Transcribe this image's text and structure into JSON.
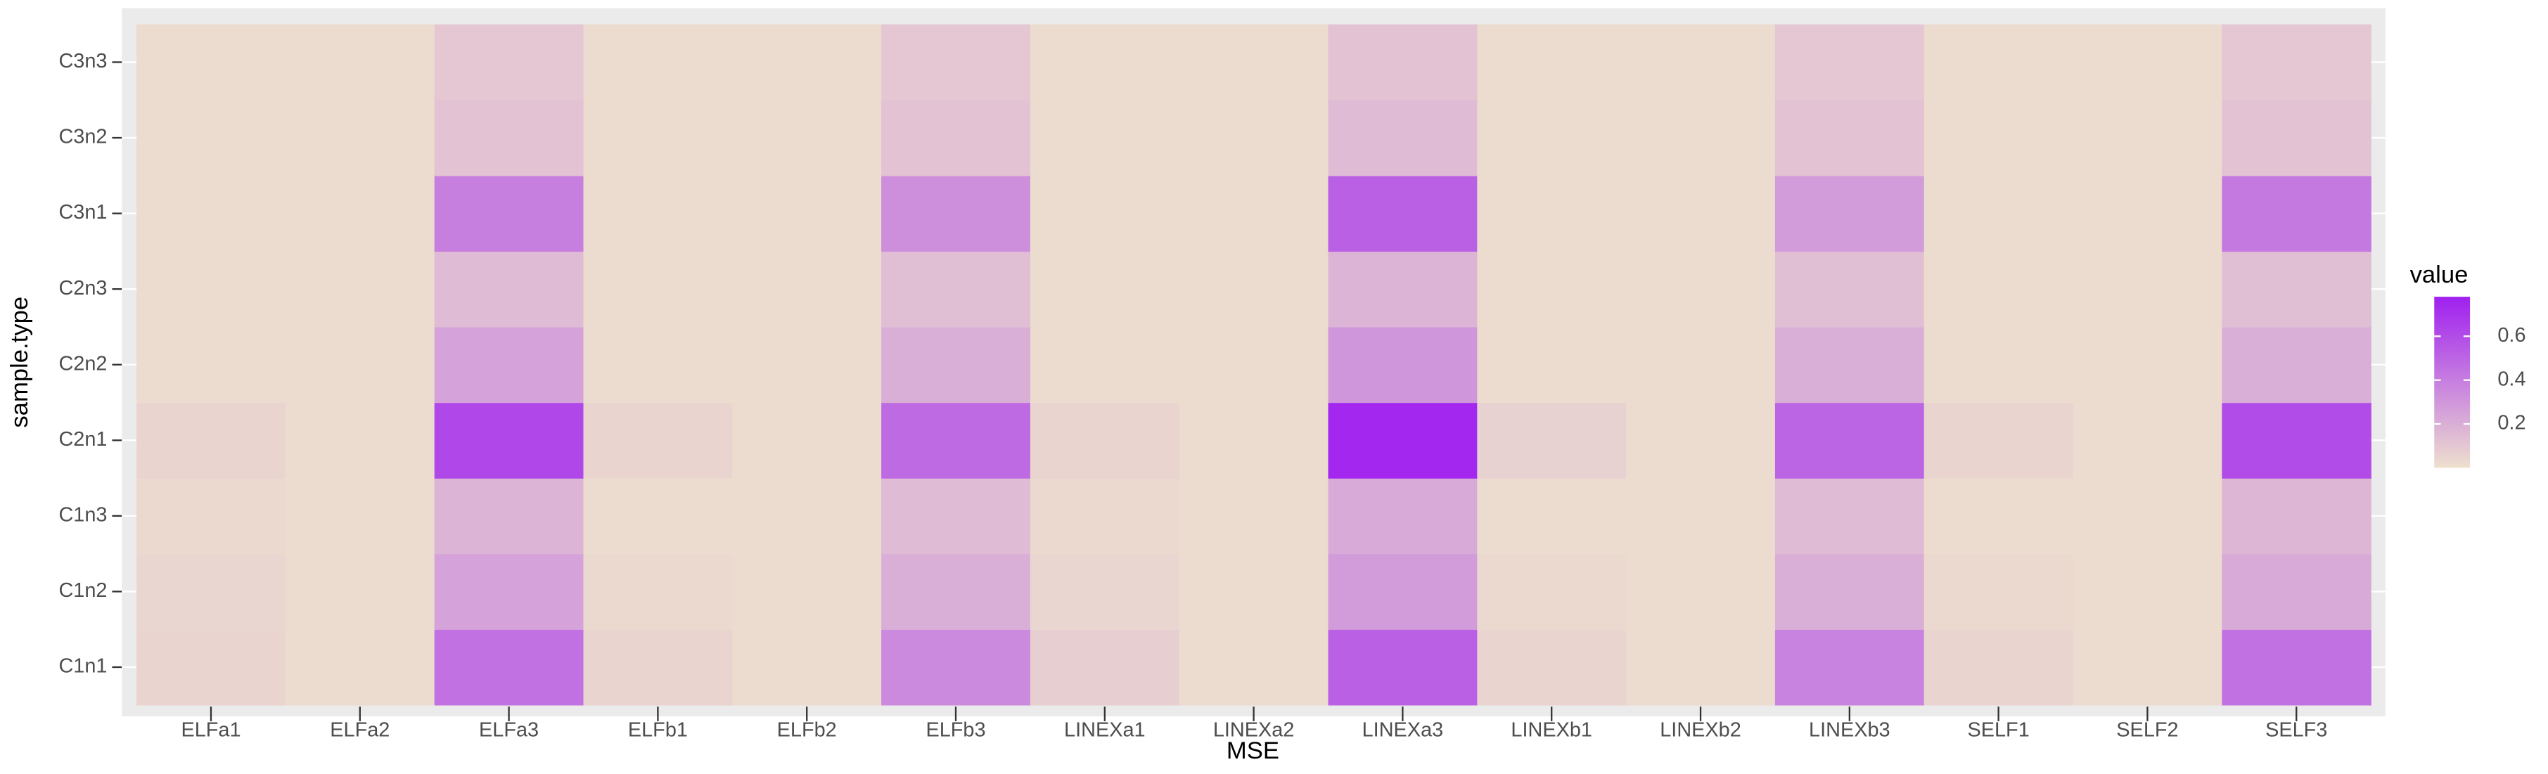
{
  "chart_data": {
    "type": "heatmap",
    "x_label": "MSE",
    "y_label": "sample.type",
    "legend_title": "value",
    "x": [
      "ELFa1",
      "ELFa2",
      "ELFa3",
      "ELFb1",
      "ELFb2",
      "ELFb3",
      "LINEXa1",
      "LINEXa2",
      "LINEXa3",
      "LINEXb1",
      "LINEXb2",
      "LINEXb3",
      "SELF1",
      "SELF2",
      "SELF3"
    ],
    "y": [
      "C1n1",
      "C1n2",
      "C1n3",
      "C2n1",
      "C2n2",
      "C2n3",
      "C3n1",
      "C3n2",
      "C3n3"
    ],
    "z": [
      [
        0.05,
        0.02,
        0.45,
        0.05,
        0.02,
        0.35,
        0.07,
        0.02,
        0.52,
        0.05,
        0.02,
        0.38,
        0.05,
        0.02,
        0.45
      ],
      [
        0.04,
        0.02,
        0.25,
        0.03,
        0.02,
        0.2,
        0.04,
        0.02,
        0.28,
        0.03,
        0.02,
        0.2,
        0.03,
        0.02,
        0.22
      ],
      [
        0.03,
        0.02,
        0.18,
        0.02,
        0.02,
        0.15,
        0.03,
        0.02,
        0.22,
        0.02,
        0.02,
        0.15,
        0.02,
        0.02,
        0.17
      ],
      [
        0.05,
        0.02,
        0.62,
        0.05,
        0.02,
        0.48,
        0.05,
        0.02,
        0.75,
        0.06,
        0.02,
        0.5,
        0.05,
        0.02,
        0.6
      ],
      [
        0.02,
        0.02,
        0.25,
        0.02,
        0.02,
        0.2,
        0.02,
        0.02,
        0.3,
        0.02,
        0.02,
        0.2,
        0.02,
        0.02,
        0.2
      ],
      [
        0.02,
        0.02,
        0.15,
        0.02,
        0.02,
        0.14,
        0.02,
        0.02,
        0.18,
        0.02,
        0.02,
        0.14,
        0.02,
        0.02,
        0.14
      ],
      [
        0.02,
        0.02,
        0.4,
        0.02,
        0.02,
        0.33,
        0.02,
        0.02,
        0.52,
        0.02,
        0.02,
        0.28,
        0.02,
        0.02,
        0.42
      ],
      [
        0.02,
        0.02,
        0.12,
        0.02,
        0.02,
        0.12,
        0.02,
        0.02,
        0.15,
        0.02,
        0.02,
        0.12,
        0.02,
        0.02,
        0.12
      ],
      [
        0.02,
        0.02,
        0.1,
        0.02,
        0.02,
        0.1,
        0.02,
        0.02,
        0.12,
        0.02,
        0.02,
        0.1,
        0.02,
        0.02,
        0.1
      ]
    ],
    "zlim": [
      0,
      0.78
    ],
    "zticks": [
      0.2,
      0.4,
      0.6
    ],
    "color_low": "#eee0ce",
    "color_high": "#a020f0",
    "panel_color": "#ebebeb"
  }
}
